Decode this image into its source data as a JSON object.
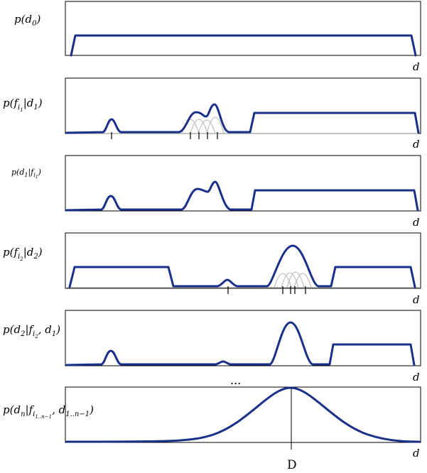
{
  "axis_label": "d",
  "ellipsis": "...",
  "marked_point": "D",
  "colors": {
    "main_curve": "#1a2f8a",
    "sub_curves": "#b3b3b3",
    "frame": "#000000"
  },
  "panels": [
    {
      "id": "p-d0",
      "label": {
        "base": "p(d",
        "sub": "0",
        "end": ")"
      },
      "distribution": "uniform"
    },
    {
      "id": "p-fi1-d1",
      "label": {
        "base": "p(f",
        "sub": "i",
        "subsub": "1",
        "mid": "|d",
        "sub2": "1",
        "end": ")"
      },
      "distribution": "feature-likelihood"
    },
    {
      "id": "p-d1-fi1",
      "label": {
        "base": "p(d",
        "sub": "1",
        "mid": "|f",
        "sub2": "i",
        "subsub2": "1",
        "end": ")"
      },
      "distribution": "posterior"
    },
    {
      "id": "p-fi2-d2",
      "label": {
        "base": "p(f",
        "sub": "i",
        "subsub": "2",
        "mid": "|d",
        "sub2": "2",
        "end": ")"
      },
      "distribution": "feature-likelihood"
    },
    {
      "id": "p-d2-fi2-d1",
      "label": {
        "base": "p(d",
        "sub": "2",
        "mid": "|f",
        "sub2": "i",
        "subsub2": "2",
        "end": ", d",
        "sub3": "1",
        "end2": ")"
      },
      "distribution": "posterior"
    },
    {
      "id": "p-dn",
      "label": {
        "base": "p(d",
        "sub": "n",
        "mid": "|f",
        "sub2": "i",
        "subsub2": "1..n−1",
        "end": ", d",
        "sub3": "1..n−1",
        "end2": ")"
      },
      "distribution": "gaussian"
    }
  ]
}
